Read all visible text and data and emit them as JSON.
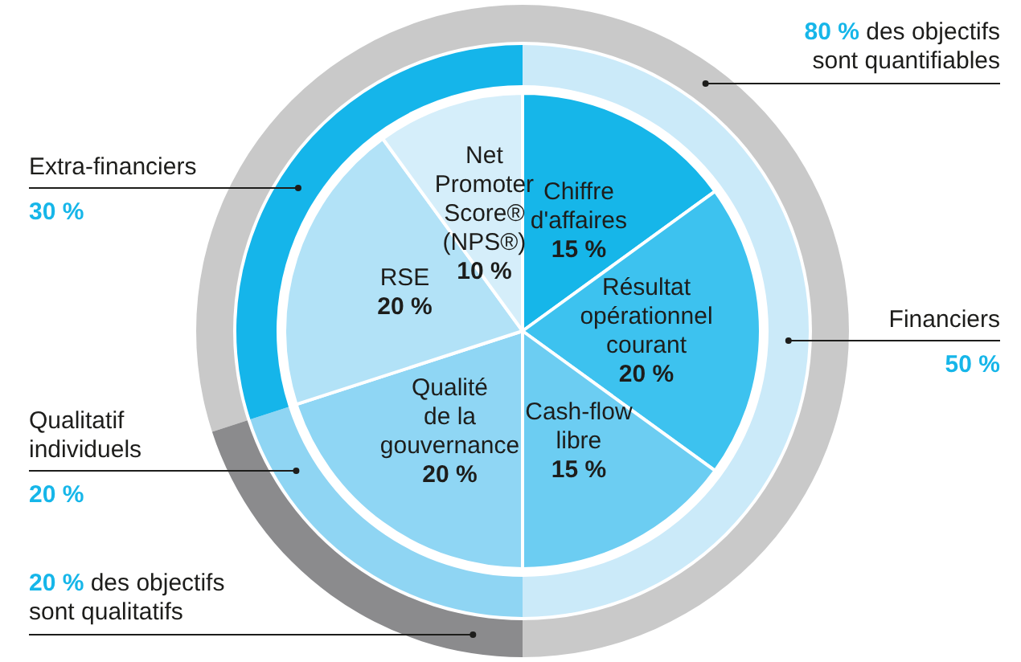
{
  "chart_data": [
    {
      "type": "pie",
      "categories": [
        "Chiffre d'affaires",
        "Résultat opérationnel courant",
        "Cash-flow libre",
        "Qualité de la gouvernance",
        "RSE",
        "Net Promoter Score® (NPS®)"
      ],
      "values": [
        15,
        20,
        15,
        20,
        20,
        10
      ],
      "value_labels": [
        "15 %",
        "20 %",
        "15 %",
        "20 %",
        "20 %",
        "10 %"
      ],
      "colors": [
        "#16b6e9",
        "#3dc2ef",
        "#6ccdf2",
        "#8fd6f4",
        "#b2e2f7",
        "#d5eefa"
      ]
    },
    {
      "type": "donut",
      "categories": [
        "Financiers",
        "Qualitatif individuels",
        "Extra-financiers"
      ],
      "values": [
        50,
        20,
        30
      ],
      "value_labels": [
        "50 %",
        "20 %",
        "30 %"
      ],
      "colors": [
        "#cbeaf9",
        "#8fd5f3",
        "#15b5ea"
      ]
    },
    {
      "type": "donut",
      "categories": [
        "des objectifs sont quantifiables",
        "des objectifs sont qualitatifs"
      ],
      "values": [
        80,
        20
      ],
      "value_labels": [
        "80 %",
        "20 %"
      ],
      "colors": [
        "#c9c9c9",
        "#8b8b8d"
      ]
    }
  ]
}
